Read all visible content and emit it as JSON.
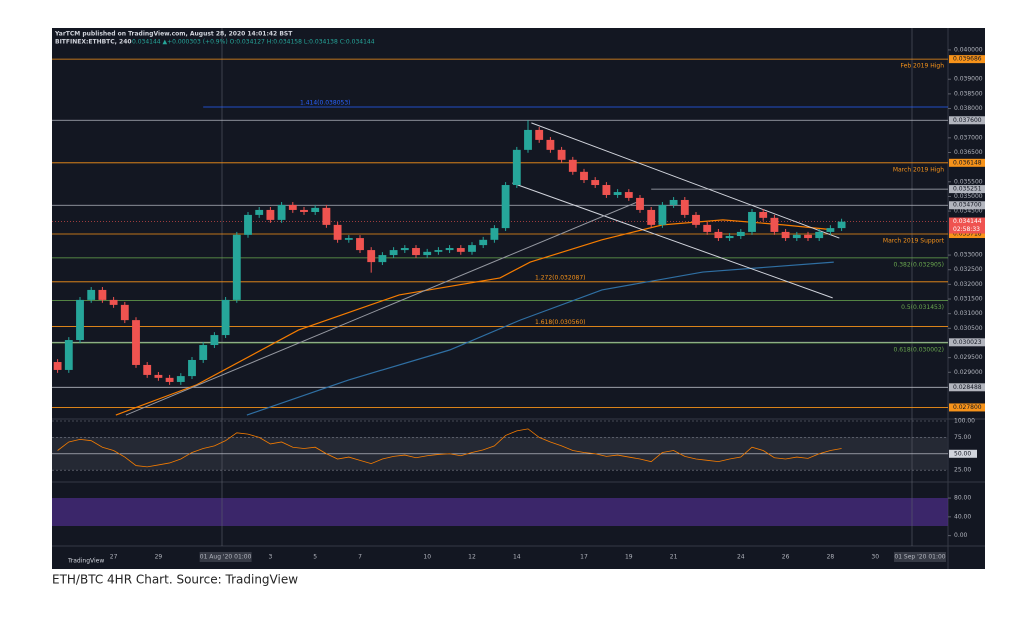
{
  "chart_data": {
    "type": "candlestick",
    "header": "YarTCM published on TradingView.com, August 28, 2020 14:01:42 BST",
    "symbol": "BITFINEX:ETHBTC, 240",
    "quote": "0.034144 ▲+0.000303 (+0.9%) O:0.034127 H:0.034158 L:0.034138 C:0.034144",
    "caption": "ETH/BTC 4HR Chart. Source: TradingView",
    "logo": "TradingView",
    "categories": [
      null,
      null,
      null,
      null,
      null,
      "27",
      null,
      null,
      null,
      "29",
      null,
      null,
      null,
      null,
      null,
      "01 Aug '20   01:00",
      null,
      null,
      null,
      "3",
      null,
      null,
      null,
      "5",
      null,
      null,
      null,
      "7",
      null,
      null,
      null,
      null,
      null,
      "10",
      null,
      null,
      null,
      "12",
      null,
      null,
      null,
      "14",
      null,
      null,
      null,
      null,
      null,
      "17",
      null,
      null,
      null,
      "19",
      null,
      null,
      null,
      "21",
      null,
      null,
      null,
      null,
      null,
      "24",
      null,
      null,
      null,
      "26",
      null,
      null,
      null,
      "28",
      null,
      null,
      null,
      "30",
      null,
      null,
      null,
      "01 Sep '20   01:00",
      null,
      null
    ],
    "open": [
      0.02935,
      0.02908,
      0.0301,
      0.03147,
      0.03181,
      0.03147,
      0.0313,
      0.03078,
      0.02925,
      0.02891,
      0.02881,
      0.02867,
      0.02887,
      0.02942,
      0.02993,
      0.03027,
      0.03147,
      0.03369,
      0.03437,
      0.03454,
      0.0342,
      0.03471,
      0.03454,
      0.03447,
      0.03461,
      0.03403,
      0.03352,
      0.03358,
      0.03317,
      0.03276,
      0.033,
      0.03317,
      0.03324,
      0.033,
      0.03311,
      0.03317,
      0.03324,
      0.03311,
      0.03334,
      0.03352,
      0.03392,
      0.03539,
      0.03659,
      0.03727,
      0.03693,
      0.03659,
      0.03625,
      0.03584,
      0.03556,
      0.03539,
      0.03505,
      0.03515,
      0.03495,
      0.03454,
      0.03403,
      0.03471,
      0.03488,
      0.03437,
      0.03403,
      0.03379,
      0.03358,
      0.03365,
      0.03379,
      0.03447,
      0.03427,
      0.03379,
      0.03358,
      0.03369,
      0.03358,
      0.03379,
      0.03392,
      null,
      null,
      null,
      null,
      null,
      null,
      null,
      null,
      null
    ],
    "high": [
      0.02945,
      0.0302,
      0.03157,
      0.03191,
      0.03191,
      0.03157,
      0.0314,
      0.03088,
      0.02935,
      0.02901,
      0.02891,
      0.02897,
      0.02952,
      0.03003,
      0.03037,
      0.03157,
      0.03379,
      0.03447,
      0.03464,
      0.03464,
      0.03481,
      0.03481,
      0.03464,
      0.03471,
      0.03471,
      0.03413,
      0.03368,
      0.03368,
      0.03327,
      0.0331,
      0.03327,
      0.03334,
      0.03334,
      0.03321,
      0.03327,
      0.03334,
      0.03334,
      0.03344,
      0.03362,
      0.03402,
      0.03549,
      0.03669,
      0.0376,
      0.03737,
      0.03703,
      0.03669,
      0.03635,
      0.03594,
      0.03566,
      0.03549,
      0.03525,
      0.03525,
      0.03505,
      0.03464,
      0.03481,
      0.03498,
      0.03498,
      0.03447,
      0.03413,
      0.03389,
      0.03375,
      0.03389,
      0.03457,
      0.03457,
      0.03437,
      0.03389,
      0.03379,
      0.03379,
      0.03389,
      0.03402,
      0.03424,
      null,
      null,
      null,
      null,
      null,
      null,
      null,
      null,
      null
    ],
    "low": [
      0.02898,
      0.02898,
      0.03,
      0.03137,
      0.03137,
      0.0312,
      0.03068,
      0.02915,
      0.02881,
      0.02871,
      0.02857,
      0.02857,
      0.02877,
      0.02932,
      0.02983,
      0.03017,
      0.03137,
      0.03359,
      0.03427,
      0.0341,
      0.0341,
      0.03444,
      0.03437,
      0.03437,
      0.03393,
      0.03342,
      0.03342,
      0.03307,
      0.0324,
      0.03266,
      0.0329,
      0.03307,
      0.0329,
      0.0329,
      0.03301,
      0.03307,
      0.03301,
      0.03301,
      0.03324,
      0.03342,
      0.03382,
      0.03529,
      0.03649,
      0.03683,
      0.03649,
      0.03615,
      0.03574,
      0.03546,
      0.03529,
      0.03495,
      0.03495,
      0.03485,
      0.03444,
      0.03393,
      0.03393,
      0.03461,
      0.03427,
      0.03393,
      0.03369,
      0.03348,
      0.03348,
      0.03355,
      0.03369,
      0.03417,
      0.03369,
      0.03348,
      0.03348,
      0.03348,
      0.03348,
      0.03369,
      0.03382,
      null,
      null,
      null,
      null,
      null,
      null,
      null,
      null,
      null
    ],
    "close": [
      0.02908,
      0.0301,
      0.03147,
      0.03181,
      0.03147,
      0.0313,
      0.03078,
      0.02925,
      0.02891,
      0.02881,
      0.02867,
      0.02887,
      0.02942,
      0.02993,
      0.03027,
      0.03147,
      0.03369,
      0.03437,
      0.03454,
      0.0342,
      0.03471,
      0.03454,
      0.03447,
      0.03461,
      0.03403,
      0.03352,
      0.03358,
      0.03317,
      0.03276,
      0.033,
      0.03317,
      0.03324,
      0.033,
      0.03311,
      0.03317,
      0.03324,
      0.03311,
      0.03334,
      0.03352,
      0.03392,
      0.03539,
      0.03659,
      0.03727,
      0.03693,
      0.03659,
      0.03625,
      0.03584,
      0.03556,
      0.03539,
      0.03505,
      0.03515,
      0.03495,
      0.03454,
      0.03403,
      0.03471,
      0.03488,
      0.03437,
      0.03403,
      0.03379,
      0.03358,
      0.03365,
      0.03379,
      0.03447,
      0.03427,
      0.03379,
      0.03358,
      0.03369,
      0.03358,
      0.03379,
      0.03392,
      0.03414,
      null,
      null,
      null,
      null,
      null,
      null,
      null,
      null,
      null
    ],
    "up_color": "#26a69a",
    "down_color": "#ef5350",
    "ylim": [
      0.02744,
      0.04068
    ],
    "yticks": [
      {
        "value": 0.04,
        "label": "0.040000"
      },
      {
        "value": 0.039,
        "label": "0.039000"
      },
      {
        "value": 0.0385,
        "label": "0.038500"
      },
      {
        "value": 0.038,
        "label": "0.038000"
      },
      {
        "value": 0.037,
        "label": "0.037000"
      },
      {
        "value": 0.0365,
        "label": "0.036500"
      },
      {
        "value": 0.0355,
        "label": "0.035500"
      },
      {
        "value": 0.035,
        "label": "0.035000"
      },
      {
        "value": 0.0345,
        "label": "0.034500"
      },
      {
        "value": 0.033,
        "label": "0.033000"
      },
      {
        "value": 0.0325,
        "label": "0.032500"
      },
      {
        "value": 0.032,
        "label": "0.032000"
      },
      {
        "value": 0.0315,
        "label": "0.031500"
      },
      {
        "value": 0.031,
        "label": "0.031000"
      },
      {
        "value": 0.0305,
        "label": "0.030500"
      },
      {
        "value": 0.0295,
        "label": "0.029500"
      },
      {
        "value": 0.029,
        "label": "0.029000"
      }
    ],
    "levels": [
      {
        "value": 0.039686,
        "color": "#f7931a",
        "boxed": true,
        "note": "Feb 2019 High"
      },
      {
        "value": 0.038053,
        "color": "#2962ff",
        "from": 13,
        "note": "1.414(0.038053)"
      },
      {
        "value": 0.0376,
        "label": "0.037600",
        "color": "#b2b5be",
        "boxed": true
      },
      {
        "value": 0.036148,
        "color": "#f7931a",
        "boxed": true,
        "note": "March 2019 High"
      },
      {
        "value": 0.035251,
        "color": "#b2b5be",
        "boxed": true,
        "from": 53
      },
      {
        "value": 0.0347,
        "label": "0.034700",
        "color": "#b2b5be",
        "boxed": true
      },
      {
        "value": 0.033718,
        "color": "#f7931a",
        "boxed": true,
        "note": "March 2019 Support"
      },
      {
        "value": 0.032905,
        "color": "#6aa84f",
        "note": "0.382(0.032905)"
      },
      {
        "value": 0.032087,
        "color": "#f7931a",
        "note": "1.272(0.032087)"
      },
      {
        "value": 0.031453,
        "color": "#6aa84f",
        "note": "0.5(0.031453)"
      },
      {
        "value": 0.03056,
        "color": "#f7931a",
        "note": "1.618(0.030560)"
      },
      {
        "value": 0.030023,
        "color": "#b2b5be",
        "boxed": true
      },
      {
        "value": 0.030002,
        "color": "#6aa84f",
        "note": "0.618(0.030002)"
      },
      {
        "value": 0.028488,
        "color": "#b2b5be",
        "boxed": true
      },
      {
        "value": 0.0278,
        "label": "0.027800",
        "color": "#f7931a",
        "boxed": true
      }
    ],
    "last_price": 0.034144,
    "countdown": "02:58:33",
    "trendlines": [
      {
        "x": [
          42.3,
          69.8
        ],
        "y": [
          0.03751,
          0.03358
        ],
        "color": "#d1d4dc"
      },
      {
        "x": [
          40.6,
          69.2
        ],
        "y": [
          0.03546,
          0.03154
        ],
        "color": "#d1d4dc"
      },
      {
        "x": [
          6.1,
          52.2
        ],
        "y": [
          0.02754,
          0.03488
        ],
        "color": "#9598a1"
      }
    ],
    "moving_averages": [
      {
        "color": "#f57c00",
        "x": [
          5.2,
          12.4,
          21.5,
          30.5,
          39.5,
          42.2,
          48.6,
          54,
          59.4,
          64.8,
          69.3
        ],
        "values": [
          0.02754,
          0.02857,
          0.03044,
          0.03164,
          0.03222,
          0.03276,
          0.03352,
          0.03403,
          0.0342,
          0.03403,
          0.03386
        ]
      },
      {
        "color": "#2f6fa3",
        "x": [
          16.9,
          26,
          35,
          41.3,
          48.6,
          57.6,
          69.3
        ],
        "values": [
          0.02754,
          0.02874,
          0.02976,
          0.03078,
          0.03181,
          0.03242,
          0.03276
        ]
      }
    ],
    "rsi": {
      "color": "#f57c00",
      "ylim": [
        10,
        100
      ],
      "yticks": [
        {
          "value": 100,
          "label": "100.00"
        },
        {
          "value": 75,
          "label": "75.00"
        },
        {
          "value": 50,
          "label": "50.00"
        },
        {
          "value": 25,
          "label": "25.00"
        }
      ],
      "values": [
        55,
        68,
        72,
        70,
        60,
        55,
        45,
        32,
        30,
        33,
        36,
        42,
        52,
        58,
        62,
        70,
        82,
        80,
        75,
        65,
        68,
        60,
        58,
        60,
        50,
        42,
        45,
        40,
        35,
        42,
        46,
        48,
        44,
        47,
        49,
        50,
        47,
        52,
        56,
        62,
        78,
        85,
        88,
        75,
        68,
        62,
        55,
        52,
        50,
        46,
        48,
        45,
        42,
        38,
        52,
        55,
        46,
        42,
        40,
        38,
        42,
        45,
        60,
        55,
        44,
        42,
        45,
        43,
        50,
        55,
        58,
        null,
        null,
        null,
        null,
        null,
        null,
        null,
        null,
        null
      ]
    },
    "stoch": {
      "ylim": [
        -20,
        110
      ],
      "yticks": [
        {
          "value": 80,
          "label": "80.00"
        },
        {
          "value": 40,
          "label": "40.00"
        },
        {
          "value": 0,
          "label": "0.00"
        }
      ]
    }
  }
}
